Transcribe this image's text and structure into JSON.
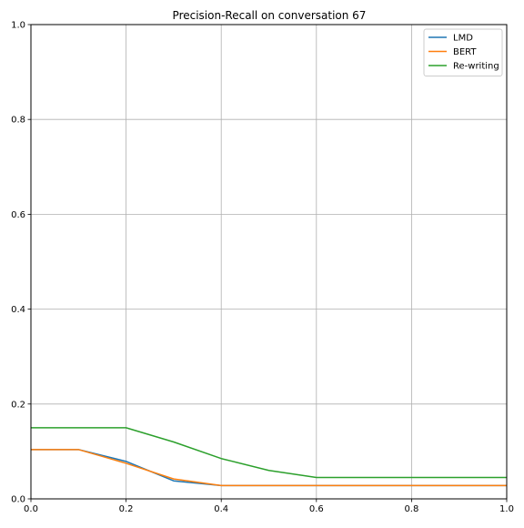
{
  "chart_data": {
    "type": "line",
    "title": "Precision-Recall on conversation 67",
    "xlabel": "",
    "ylabel": "",
    "xlim": [
      0.0,
      1.0
    ],
    "ylim": [
      0.0,
      1.0
    ],
    "xticks": [
      0.0,
      0.2,
      0.4,
      0.6,
      0.8,
      1.0
    ],
    "yticks": [
      0.0,
      0.2,
      0.4,
      0.6,
      0.8,
      1.0
    ],
    "x_tick_labels": [
      "0.0",
      "0.2",
      "0.4",
      "0.6",
      "0.8",
      "1.0"
    ],
    "y_tick_labels": [
      "0.0",
      "0.2",
      "0.4",
      "0.6",
      "0.8",
      "1.0"
    ],
    "grid": true,
    "legend_position": "top-right",
    "x": [
      0.0,
      0.1,
      0.2,
      0.3,
      0.4,
      0.5,
      0.6,
      0.7,
      0.8,
      0.9,
      1.0
    ],
    "series": [
      {
        "name": "LMD",
        "color": "#1f77b4",
        "values": [
          0.104,
          0.104,
          0.079,
          0.038,
          0.028,
          0.028,
          0.028,
          0.028,
          0.028,
          0.028,
          0.028
        ]
      },
      {
        "name": "BERT",
        "color": "#ff7f0e",
        "values": [
          0.104,
          0.104,
          0.075,
          0.042,
          0.028,
          0.028,
          0.028,
          0.028,
          0.028,
          0.028,
          0.028
        ]
      },
      {
        "name": "Re-writing",
        "color": "#2ca02c",
        "values": [
          0.15,
          0.15,
          0.15,
          0.12,
          0.085,
          0.06,
          0.045,
          0.045,
          0.045,
          0.045,
          0.045
        ]
      }
    ]
  }
}
